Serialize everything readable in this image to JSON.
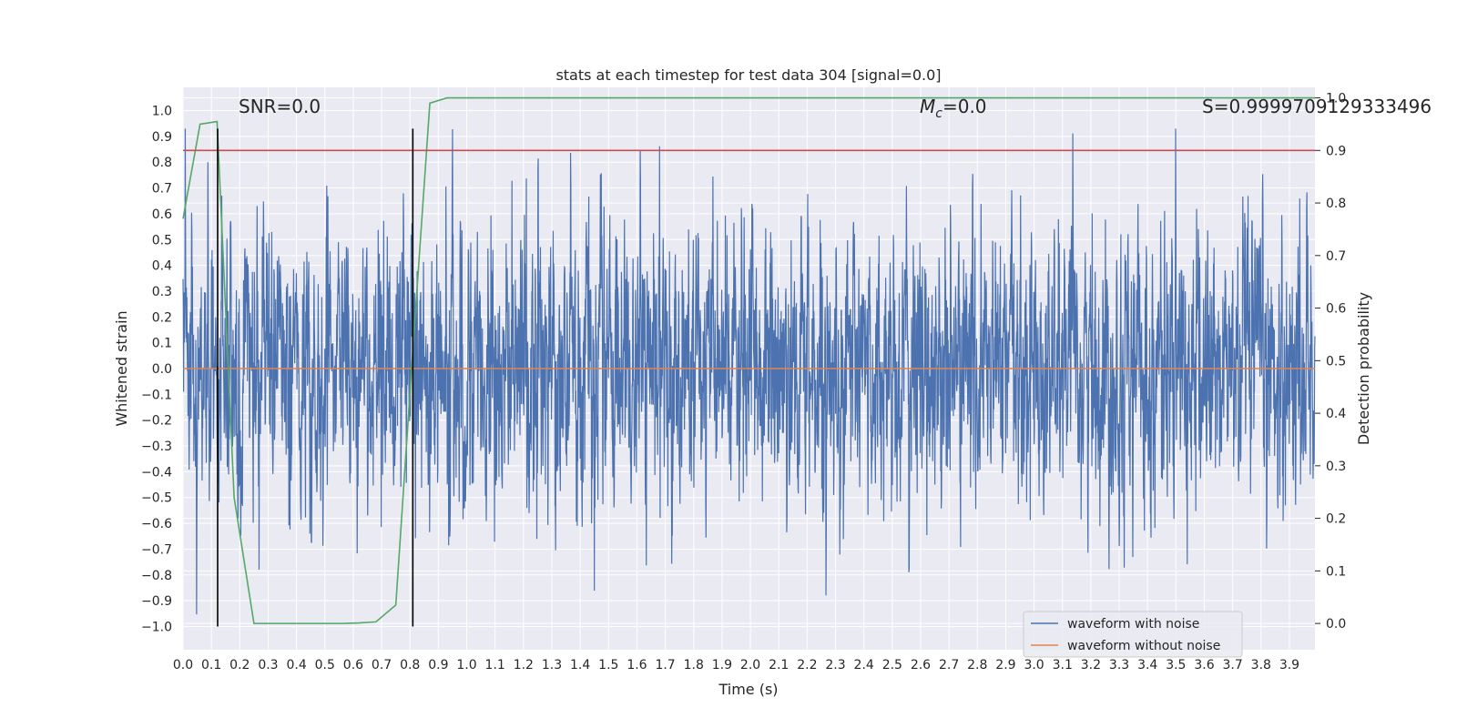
{
  "chart_data": {
    "type": "line",
    "title": "stats at each timestep for test data 304 [signal=0.0]",
    "xlabel": "Time (s)",
    "ylabel": "Whitened strain",
    "y2label": "Detection probability",
    "xlim": [
      0.0,
      3.99
    ],
    "ylim": [
      -1.09,
      1.09
    ],
    "y2lim": [
      -0.05,
      1.02
    ],
    "grid": true,
    "legend_position": "lower-right",
    "x_ticks": [
      "0.0",
      "0.1",
      "0.2",
      "0.3",
      "0.4",
      "0.5",
      "0.6",
      "0.7",
      "0.8",
      "0.9",
      "1.0",
      "1.1",
      "1.2",
      "1.3",
      "1.4",
      "1.5",
      "1.6",
      "1.7",
      "1.8",
      "1.9",
      "2.0",
      "2.1",
      "2.2",
      "2.3",
      "2.4",
      "2.5",
      "2.6",
      "2.7",
      "2.8",
      "2.9",
      "3.0",
      "3.1",
      "3.2",
      "3.3",
      "3.4",
      "3.5",
      "3.6",
      "3.7",
      "3.8",
      "3.9"
    ],
    "y_ticks": [
      "1.0",
      "0.9",
      "0.8",
      "0.7",
      "0.6",
      "0.5",
      "0.4",
      "0.3",
      "0.2",
      "0.1",
      "0.0",
      "−0.1",
      "−0.2",
      "−0.3",
      "−0.4",
      "−0.5",
      "−0.6",
      "−0.7",
      "−0.8",
      "−0.9",
      "−1.0"
    ],
    "y2_ticks": [
      "1.0",
      "0.9",
      "0.8",
      "0.7",
      "0.6",
      "0.5",
      "0.4",
      "0.3",
      "0.2",
      "0.1",
      "0.0"
    ],
    "annotations": {
      "snr": "SNR=0.0",
      "mc": "=0.0",
      "mc_symbol": "M",
      "mc_sub": "c",
      "s": "S=0.9999709129333496"
    },
    "series": [
      {
        "name": "waveform with noise",
        "color": "#4c72b0",
        "style": "dense noise",
        "amplitude_range": [
          -1.0,
          0.93
        ]
      },
      {
        "name": "waveform without noise",
        "color": "#dd8452",
        "x": [
          0.0,
          3.99
        ],
        "y": [
          0.0,
          0.0
        ]
      },
      {
        "name": "",
        "color": "#55a868",
        "axis": "right",
        "x": [
          0.0,
          0.06,
          0.12,
          0.18,
          0.25,
          0.31,
          0.37,
          0.43,
          0.5,
          0.56,
          0.62,
          0.68,
          0.75,
          0.81,
          0.87,
          0.93,
          1.0,
          3.99
        ],
        "y": [
          0.77,
          0.95,
          0.955,
          0.24,
          0.0,
          0.0,
          0.0,
          0.0,
          0.0,
          0.0,
          0.001,
          0.003,
          0.035,
          0.52,
          0.99,
          1.0,
          1.0,
          1.0
        ]
      },
      {
        "name": "",
        "color": "#c44e52",
        "axis": "right",
        "x": [
          0.0,
          3.99
        ],
        "y": [
          0.9,
          0.9
        ]
      }
    ],
    "vertical_lines": [
      {
        "x": 0.122,
        "y": [
          -1.0,
          0.93
        ],
        "color": "#000000"
      },
      {
        "x": 0.81,
        "y": [
          -1.0,
          0.93
        ],
        "color": "#000000"
      }
    ]
  }
}
